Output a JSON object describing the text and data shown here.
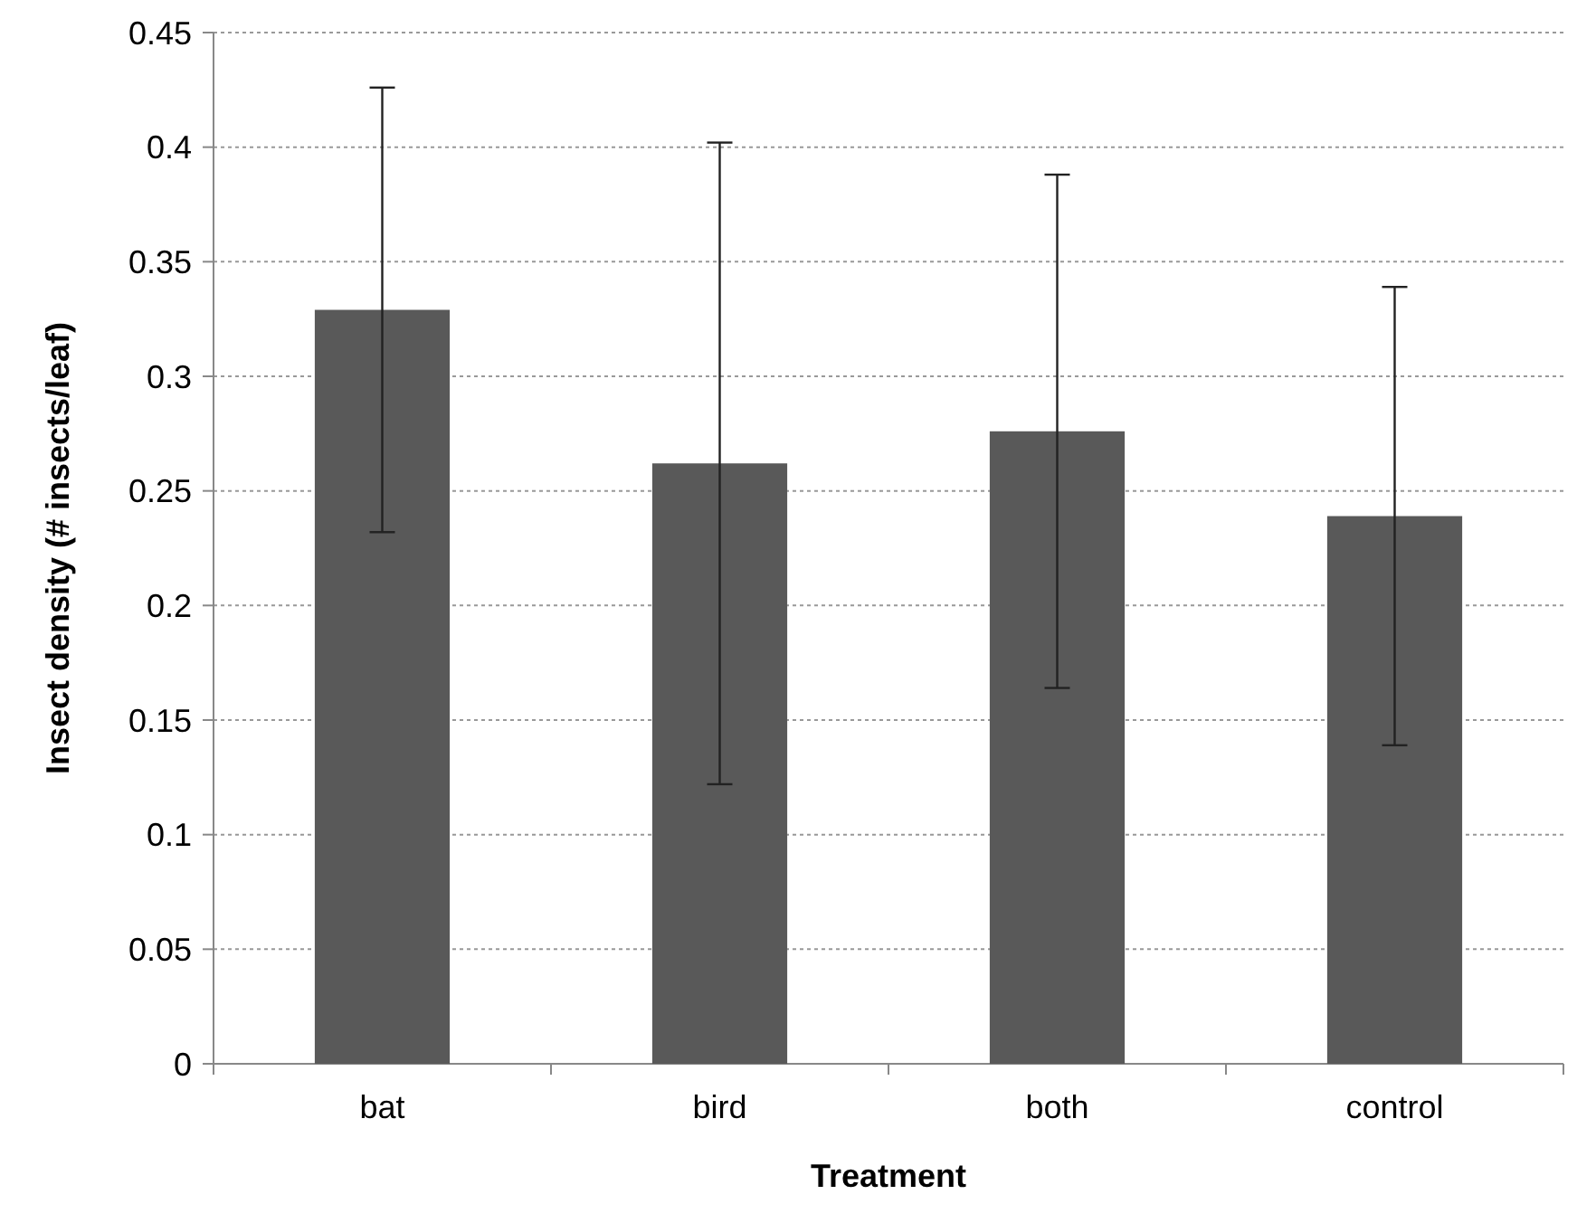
{
  "chart_data": {
    "type": "bar",
    "xlabel": "Treatment",
    "ylabel": "Insect density (# insects/leaf)",
    "categories": [
      "bat",
      "bird",
      "both",
      "control"
    ],
    "values": [
      0.329,
      0.262,
      0.276,
      0.239
    ],
    "errors": [
      0.097,
      0.14,
      0.112,
      0.1
    ],
    "color": "#595959",
    "ylim": [
      0,
      0.45
    ],
    "yticks": [
      0,
      0.05,
      0.1,
      0.15,
      0.2,
      0.25,
      0.3,
      0.35,
      0.4,
      0.45
    ],
    "grid": "y"
  }
}
